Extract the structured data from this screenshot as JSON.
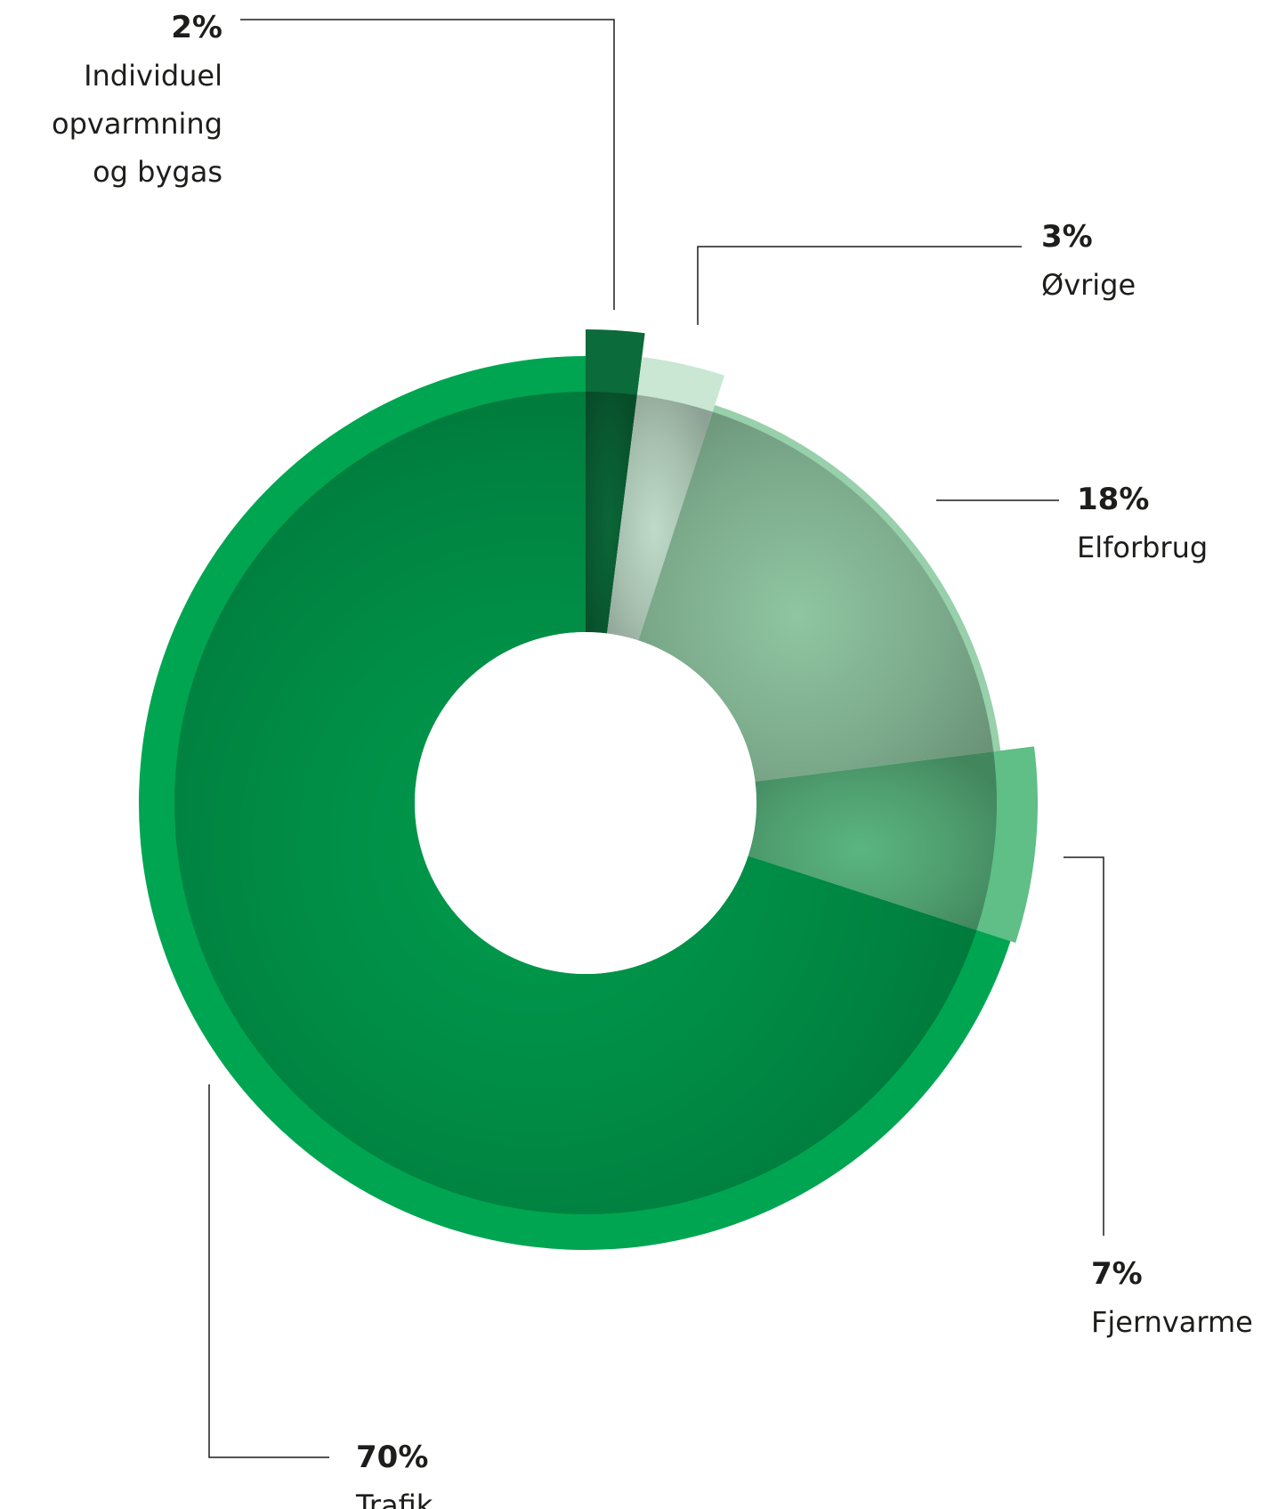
{
  "chart_data": {
    "type": "pie",
    "variant": "donut",
    "title": "",
    "slices": [
      {
        "label": [
          "Individuel",
          "opvarmning",
          "og bygas"
        ],
        "value": 2,
        "value_label": "2%",
        "color": "#0b6b3a"
      },
      {
        "label": [
          "Øvrige"
        ],
        "value": 3,
        "value_label": "3%",
        "color": "#c9e7d3"
      },
      {
        "label": [
          "Elforbrug"
        ],
        "value": 18,
        "value_label": "18%",
        "color": "#97d0aa"
      },
      {
        "label": [
          "Fjernvarme"
        ],
        "value": 7,
        "value_label": "7%",
        "color": "#5fbf86"
      },
      {
        "label": [
          "Trafik"
        ],
        "value": 70,
        "value_label": "70%",
        "color": "#00a551"
      }
    ],
    "start": "top",
    "direction": "clockwise"
  }
}
